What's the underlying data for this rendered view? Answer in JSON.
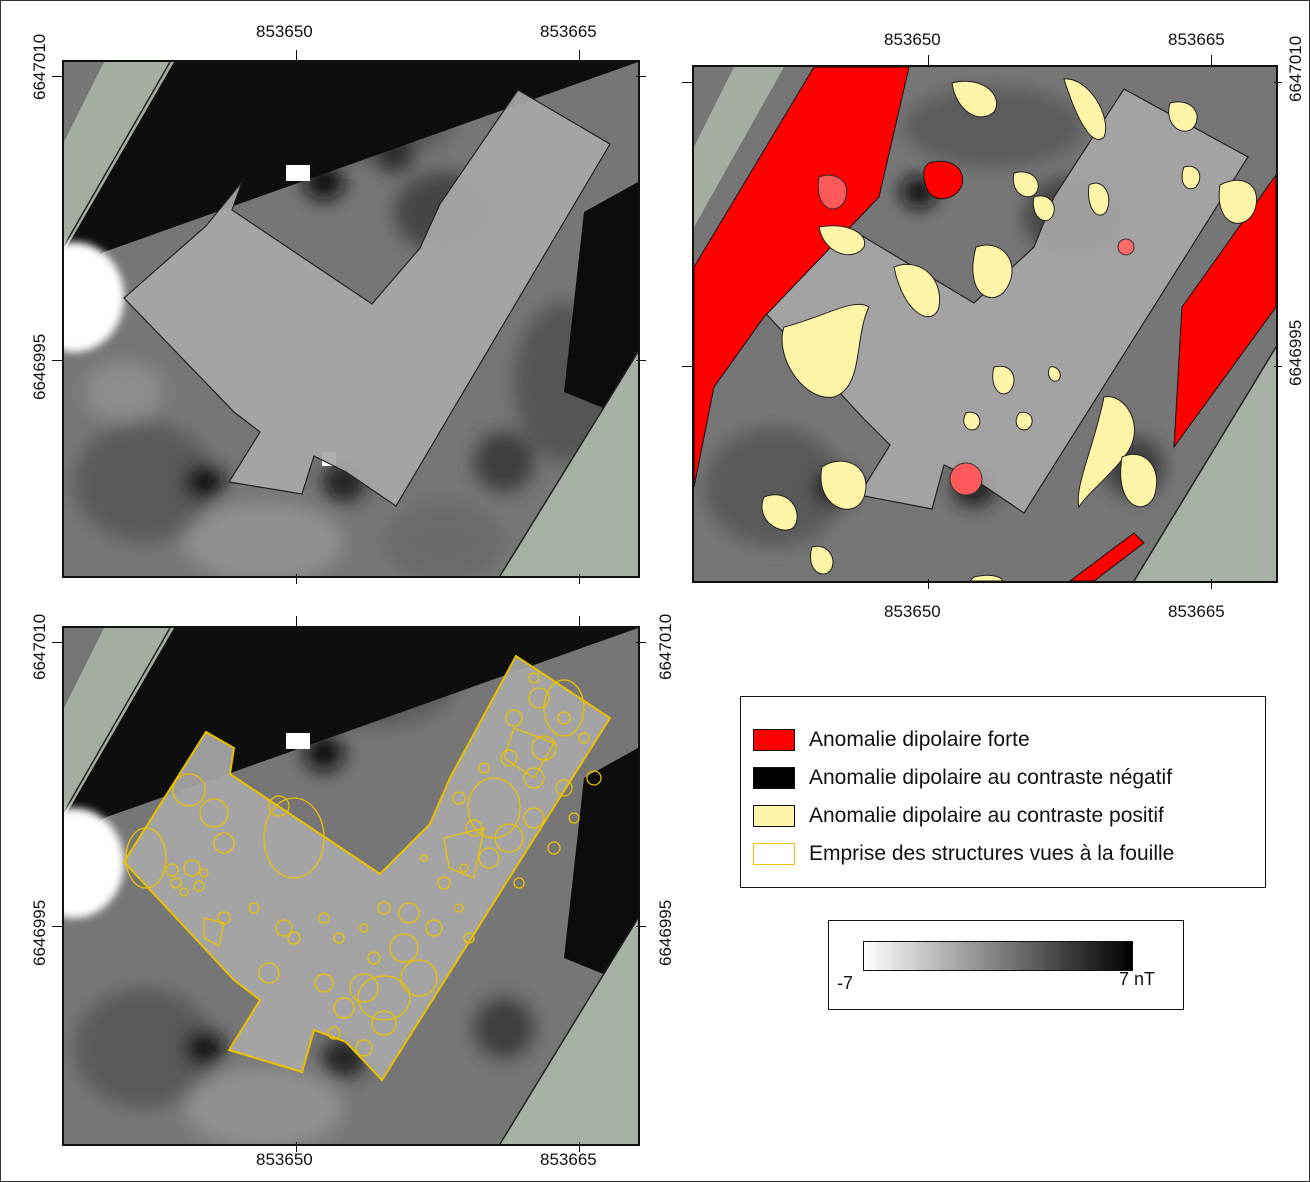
{
  "axes": {
    "x_labels": [
      "853650",
      "853665"
    ],
    "y_labels": [
      "6647010",
      "6646995"
    ]
  },
  "legend": {
    "items": [
      {
        "label": "Anomalie dipolaire forte",
        "color": "#ff0000",
        "border": "#111111"
      },
      {
        "label": "Anomalie dipolaire au contraste négatif",
        "color": "#000000",
        "border": "#111111"
      },
      {
        "label": "Anomalie dipolaire au contraste positif",
        "color": "#fff5a8",
        "border": "#111111"
      },
      {
        "label": "Emprise des structures vues à la fouille",
        "color": "#ffffff",
        "border": "#f2c200"
      }
    ]
  },
  "scale": {
    "min_label": "-7",
    "max_label": "7 nT",
    "gradient_from": "#ffffff",
    "gradient_to": "#000000"
  },
  "colors": {
    "strong_dipole": "#ff0000",
    "positive_contrast": "#fff5a8",
    "excavation_outline": "#e8c000",
    "orthophoto": "#9aa89a"
  }
}
